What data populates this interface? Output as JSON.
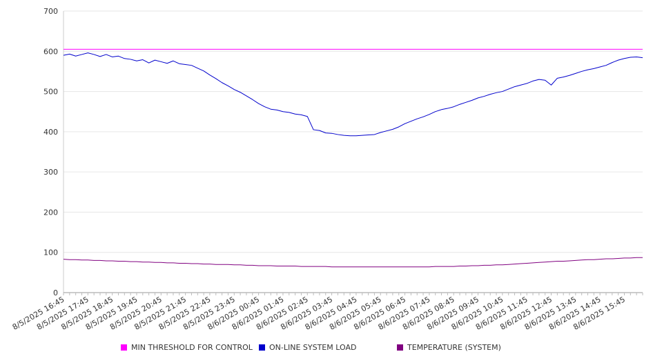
{
  "chart_data": {
    "type": "line",
    "title": "",
    "xlabel": "",
    "ylabel": "",
    "ylim": [
      0,
      700
    ],
    "yticks": [
      0,
      100,
      200,
      300,
      400,
      500,
      600,
      700
    ],
    "grid": true,
    "legend_position": "bottom",
    "x_tick_labels": [
      "8/5/2025 16:45",
      "8/5/2025 17:45",
      "8/5/2025 18:45",
      "8/5/2025 19:45",
      "8/5/2025 20:45",
      "8/5/2025 21:45",
      "8/5/2025 22:45",
      "8/5/2025 23:45",
      "8/6/2025 00:45",
      "8/6/2025 01:45",
      "8/6/2025 02:45",
      "8/6/2025 03:45",
      "8/6/2025 04:45",
      "8/6/2025 05:45",
      "8/6/2025 06:45",
      "8/6/2025 07:45",
      "8/6/2025 08:45",
      "8/6/2025 09:45",
      "8/6/2025 10:45",
      "8/6/2025 11:45",
      "8/6/2025 12:45",
      "8/6/2025 13:45",
      "8/6/2025 14:45",
      "8/6/2025 15:45"
    ],
    "x_start": "8/5/2025 16:45",
    "x_end": "8/6/2025 16:30",
    "sample_interval_minutes": 15,
    "series": [
      {
        "name": "MIN THRESHOLD FOR CONTROL",
        "color": "#ff00ff",
        "values": [
          605,
          605,
          605,
          605,
          605,
          605,
          605,
          605,
          605,
          605,
          605,
          605,
          605,
          605,
          605,
          605,
          605,
          605,
          605,
          605,
          605,
          605,
          605,
          605,
          605,
          605,
          605,
          605,
          605,
          605,
          605,
          605,
          605,
          605,
          605,
          605,
          605,
          605,
          605,
          605,
          605,
          605,
          605,
          605,
          605,
          605,
          605,
          605,
          605,
          605,
          605,
          605,
          605,
          605,
          605,
          605,
          605,
          605,
          605,
          605,
          605,
          605,
          605,
          605,
          605,
          605,
          605,
          605,
          605,
          605,
          605,
          605,
          605,
          605,
          605,
          605,
          605,
          605,
          605,
          605,
          605,
          605,
          605,
          605,
          605,
          605,
          605,
          605,
          605,
          605,
          605,
          605,
          605,
          605,
          605,
          605
        ]
      },
      {
        "name": "ON-LINE SYSTEM LOAD",
        "color": "#0000cc",
        "values": [
          590,
          593,
          588,
          592,
          596,
          592,
          587,
          592,
          586,
          588,
          582,
          580,
          576,
          579,
          571,
          578,
          574,
          570,
          576,
          569,
          567,
          565,
          558,
          551,
          541,
          532,
          522,
          514,
          505,
          498,
          489,
          480,
          470,
          462,
          456,
          454,
          450,
          448,
          444,
          442,
          438,
          405,
          403,
          397,
          396,
          393,
          391,
          390,
          390,
          391,
          392,
          393,
          398,
          402,
          406,
          412,
          420,
          426,
          432,
          437,
          443,
          450,
          455,
          458,
          462,
          468,
          473,
          478,
          484,
          488,
          493,
          497,
          500,
          506,
          512,
          516,
          520,
          526,
          530,
          528,
          516,
          533,
          536,
          540,
          545,
          550,
          554,
          557,
          561,
          565,
          572,
          578,
          582,
          585,
          586,
          584
        ]
      },
      {
        "name": "TEMPERATURE (SYSTEM)",
        "color": "#800080",
        "values": [
          83,
          82,
          82,
          81,
          81,
          80,
          80,
          79,
          79,
          78,
          78,
          77,
          77,
          76,
          76,
          75,
          75,
          74,
          74,
          73,
          73,
          72,
          72,
          71,
          71,
          70,
          70,
          70,
          69,
          69,
          68,
          68,
          67,
          67,
          67,
          66,
          66,
          66,
          66,
          65,
          65,
          65,
          65,
          65,
          64,
          64,
          64,
          64,
          64,
          64,
          64,
          64,
          64,
          64,
          64,
          64,
          64,
          64,
          64,
          64,
          64,
          65,
          65,
          65,
          65,
          66,
          66,
          67,
          67,
          68,
          68,
          69,
          69,
          70,
          71,
          72,
          73,
          74,
          75,
          76,
          77,
          78,
          78,
          79,
          80,
          81,
          82,
          82,
          83,
          84,
          84,
          85,
          86,
          86,
          87,
          87
        ]
      }
    ]
  }
}
